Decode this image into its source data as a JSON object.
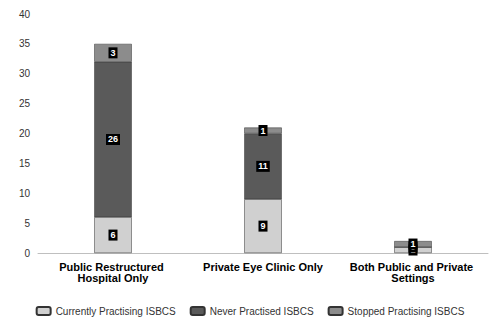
{
  "chart_data": {
    "type": "bar",
    "stacked": true,
    "categories": [
      "Public Restructured Hospital Only",
      "Private Eye Clinic Only",
      "Both Public and Private Settings"
    ],
    "series": [
      {
        "name": "Currently Practising ISBCS",
        "color": "#d0d0d0",
        "values": [
          6,
          9,
          1
        ]
      },
      {
        "name": "Never Practised ISBCS",
        "color": "#5a5a5a",
        "values": [
          26,
          11,
          0
        ]
      },
      {
        "name": "Stopped Practising ISBCS",
        "color": "#8c8c8c",
        "values": [
          3,
          1,
          1
        ]
      }
    ],
    "ylim": [
      0,
      40
    ],
    "yticks": [
      0,
      5,
      10,
      15,
      20,
      25,
      30,
      35,
      40
    ],
    "grid": false,
    "legend": "bottom",
    "data_labels": true
  }
}
